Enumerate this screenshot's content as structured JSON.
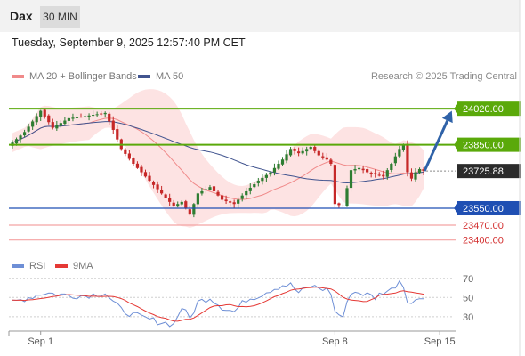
{
  "header": {
    "instrument": "Dax",
    "timeframe": "30 MIN",
    "datetime": "Tuesday, September 9, 2025 12:57:40 PM CET"
  },
  "legend": {
    "ma20": "MA 20 + Bollinger Bands",
    "ma50": "MA 50",
    "rsi": "RSI",
    "rsi_ma": "9MA",
    "copyright": "Research © 2025 Trading Central"
  },
  "colors": {
    "up": "#2e7d32",
    "down": "#c62828",
    "resistance": "#5aa90a",
    "support": "#1f4fb3",
    "target_line": "#f4a3a3",
    "arrow": "#2f62a8",
    "bollinger_fill": "#fde3e3",
    "ma20": "#f08a8a",
    "ma50": "#41548f",
    "rsi": "#6e8fd6",
    "rsi_ma": "#e53935"
  },
  "chart_data": {
    "type": "candlestick",
    "price_range": [
      23365,
      24130
    ],
    "levels": [
      {
        "value": 24020.0,
        "label": "24020.00",
        "kind": "resistance"
      },
      {
        "value": 23850.0,
        "label": "23850.00",
        "kind": "resistance"
      },
      {
        "value": 23725.88,
        "label": "23725.88",
        "kind": "last_price"
      },
      {
        "value": 23550.0,
        "label": "23550.00",
        "kind": "support"
      },
      {
        "value": 23470.0,
        "label": "23470.00",
        "kind": "target"
      },
      {
        "value": 23400.0,
        "label": "23400.00",
        "kind": "target"
      }
    ],
    "x_labels": [
      {
        "label": "Sep 1",
        "index": 7
      },
      {
        "label": "Sep 8",
        "index": 80
      },
      {
        "label": "Sep 15",
        "index": 106
      }
    ],
    "price_keypoints": [
      [
        0,
        23860
      ],
      [
        3,
        23910
      ],
      [
        7,
        24010
      ],
      [
        10,
        23930
      ],
      [
        14,
        23975
      ],
      [
        18,
        23985
      ],
      [
        23,
        24000
      ],
      [
        25,
        23920
      ],
      [
        27,
        23830
      ],
      [
        30,
        23760
      ],
      [
        33,
        23700
      ],
      [
        37,
        23620
      ],
      [
        40,
        23560
      ],
      [
        42,
        23580
      ],
      [
        44,
        23520
      ],
      [
        46,
        23620
      ],
      [
        49,
        23650
      ],
      [
        52,
        23590
      ],
      [
        55,
        23570
      ],
      [
        58,
        23630
      ],
      [
        61,
        23680
      ],
      [
        64,
        23720
      ],
      [
        67,
        23780
      ],
      [
        69,
        23830
      ],
      [
        71,
        23810
      ],
      [
        74,
        23840
      ],
      [
        76,
        23800
      ],
      [
        78,
        23780
      ],
      [
        79,
        23760
      ],
      [
        80,
        23570
      ],
      [
        82,
        23560
      ],
      [
        84,
        23730
      ],
      [
        86,
        23740
      ],
      [
        88,
        23720
      ],
      [
        90,
        23710
      ],
      [
        92,
        23700
      ],
      [
        94,
        23760
      ],
      [
        96,
        23830
      ],
      [
        97,
        23850
      ],
      [
        98,
        23720
      ],
      [
        99,
        23690
      ],
      [
        100,
        23720
      ],
      [
        101,
        23735
      ],
      [
        102,
        23726
      ]
    ],
    "projection": {
      "from_index": 102,
      "from_value": 23726,
      "to_index": 109,
      "to_value": 24010
    },
    "rsi": {
      "levels": [
        70,
        50,
        30
      ],
      "range": [
        15,
        80
      ],
      "keypoints": [
        [
          0,
          45
        ],
        [
          4,
          50
        ],
        [
          8,
          55
        ],
        [
          14,
          52
        ],
        [
          18,
          52
        ],
        [
          23,
          55
        ],
        [
          25,
          45
        ],
        [
          27,
          37
        ],
        [
          30,
          32
        ],
        [
          33,
          28
        ],
        [
          36,
          25
        ],
        [
          40,
          22
        ],
        [
          42,
          40
        ],
        [
          44,
          28
        ],
        [
          46,
          45
        ],
        [
          49,
          50
        ],
        [
          52,
          40
        ],
        [
          55,
          35
        ],
        [
          58,
          48
        ],
        [
          61,
          52
        ],
        [
          64,
          58
        ],
        [
          67,
          63
        ],
        [
          69,
          63
        ],
        [
          71,
          55
        ],
        [
          74,
          62
        ],
        [
          76,
          60
        ],
        [
          78,
          58
        ],
        [
          79,
          55
        ],
        [
          80,
          35
        ],
        [
          82,
          30
        ],
        [
          84,
          56
        ],
        [
          86,
          55
        ],
        [
          88,
          53
        ],
        [
          90,
          50
        ],
        [
          92,
          56
        ],
        [
          94,
          58
        ],
        [
          96,
          68
        ],
        [
          97,
          62
        ],
        [
          98,
          48
        ],
        [
          99,
          44
        ],
        [
          100,
          46
        ],
        [
          101,
          50
        ],
        [
          102,
          52
        ]
      ]
    }
  }
}
